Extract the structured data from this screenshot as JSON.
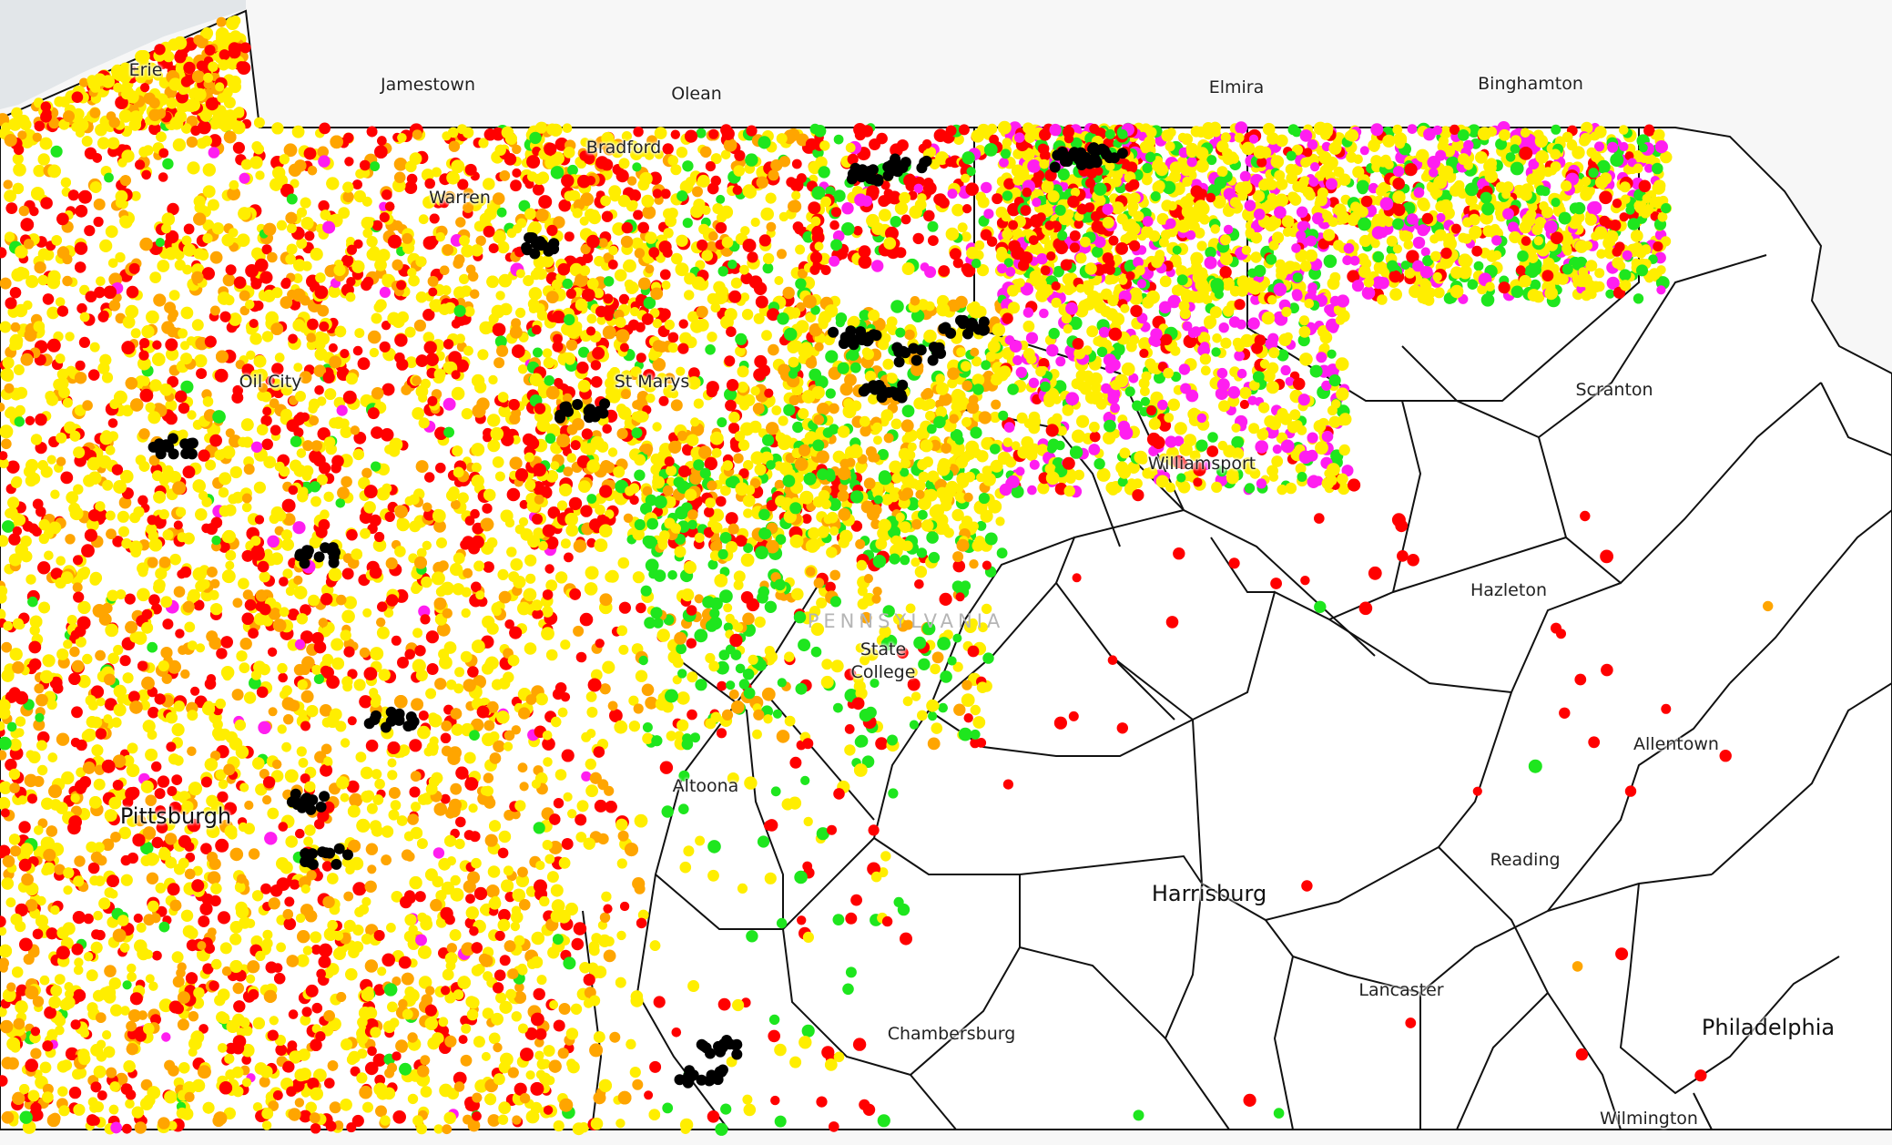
{
  "map": {
    "state_label": "PENNSYLVANIA",
    "cities": [
      {
        "name": "Erie",
        "big": false
      },
      {
        "name": "Jamestown",
        "big": false
      },
      {
        "name": "Olean",
        "big": false
      },
      {
        "name": "Elmira",
        "big": false
      },
      {
        "name": "Binghamton",
        "big": false
      },
      {
        "name": "Bradford",
        "big": false
      },
      {
        "name": "Warren",
        "big": false
      },
      {
        "name": "Oil City",
        "big": false
      },
      {
        "name": "St Marys",
        "big": false
      },
      {
        "name": "Scranton",
        "big": false
      },
      {
        "name": "Williamsport",
        "big": false
      },
      {
        "name": "Hazleton",
        "big": false
      },
      {
        "name": "State College",
        "big": false
      },
      {
        "name": "Allentown",
        "big": false
      },
      {
        "name": "Altoona",
        "big": false
      },
      {
        "name": "Pittsburgh",
        "big": true
      },
      {
        "name": "Reading",
        "big": false
      },
      {
        "name": "Harrisburg",
        "big": true
      },
      {
        "name": "Lancaster",
        "big": false
      },
      {
        "name": "Chambersburg",
        "big": false
      },
      {
        "name": "Philadelphia",
        "big": true
      },
      {
        "name": "Wilmington",
        "big": false
      }
    ],
    "marker_colors": {
      "yellow": "#ffee00",
      "orange": "#ffa500",
      "red": "#ff0000",
      "green": "#1ee61e",
      "magenta": "#ff1ef0",
      "black": "#000000"
    }
  }
}
